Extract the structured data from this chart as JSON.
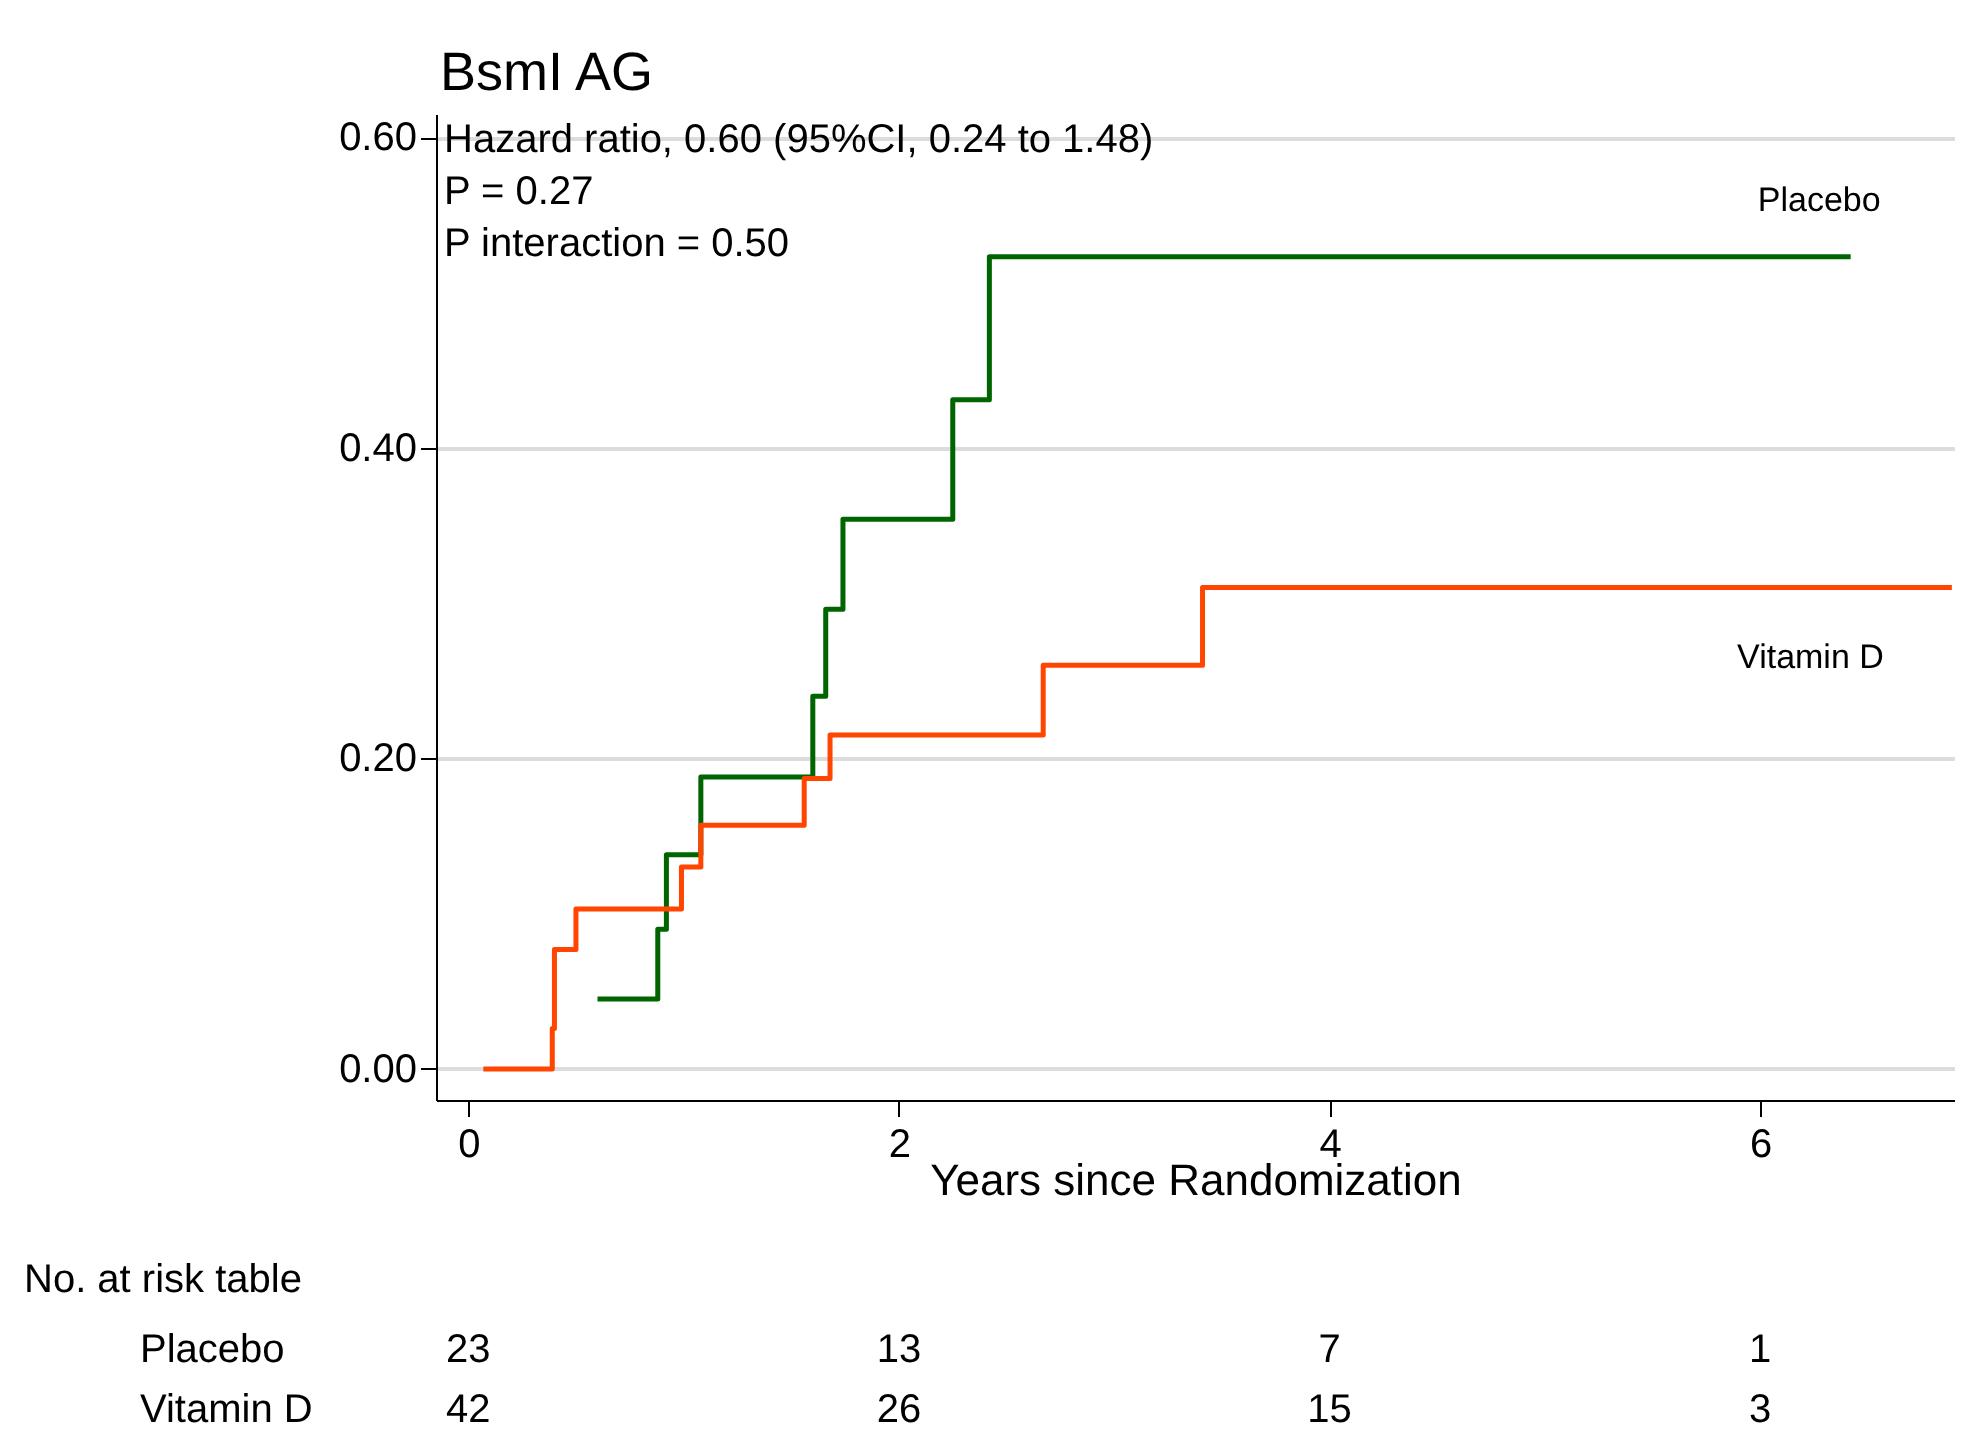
{
  "chart_data": {
    "type": "step",
    "title": "BsmI AG",
    "xlabel": "Years since Randomization",
    "xlim": [
      -0.15,
      6.9
    ],
    "xticks": [
      0,
      2,
      4,
      6
    ],
    "ylim": [
      -0.02,
      0.615
    ],
    "yticks": [
      {
        "value": 0,
        "label": "0.00"
      },
      {
        "value": 0.2,
        "label": "0.20"
      },
      {
        "value": 0.4,
        "label": "0.40"
      },
      {
        "value": 0.6,
        "label": "0.60"
      }
    ],
    "grid": "y",
    "legend": false,
    "series": [
      {
        "name": "Placebo",
        "color": "#006400",
        "x": [
          0.6,
          0.88,
          0.92,
          1.08,
          1.6,
          1.66,
          1.74,
          2.25,
          2.42,
          6.42
        ],
        "values": [
          0.045,
          0.09,
          0.138,
          0.188,
          0.24,
          0.296,
          0.354,
          0.431,
          0.523,
          0.523
        ]
      },
      {
        "name": "Vitamin D",
        "color": "#ff4500",
        "x": [
          0.07,
          0.39,
          0.4,
          0.5,
          0.99,
          1.08,
          1.56,
          1.68,
          2.67,
          3.41,
          6.89
        ],
        "values": [
          0,
          0.026,
          0.077,
          0.103,
          0.13,
          0.157,
          0.187,
          0.215,
          0.26,
          0.31,
          0.31
        ]
      }
    ],
    "annotations": [
      "Hazard ratio, 0.60 (95%CI, 0.24 to 1.48)",
      "P = 0.27",
      "P interaction = 0.50",
      "No. at risk table",
      "Placebo",
      [
        "23",
        "13",
        "7",
        "1"
      ],
      "Vitamin D",
      [
        "42",
        "26",
        "15",
        "3"
      ]
    ]
  }
}
